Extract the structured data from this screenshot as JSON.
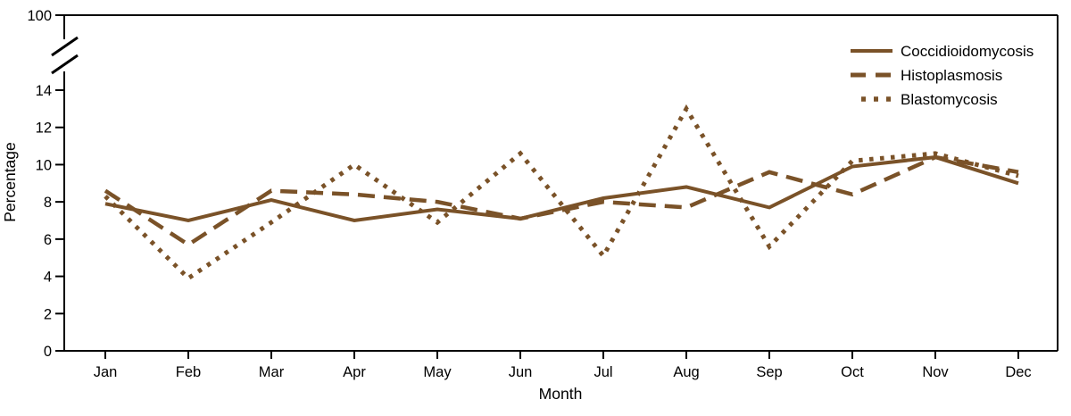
{
  "chart_data": {
    "type": "line",
    "title": "",
    "xlabel": "Month",
    "ylabel": "Percentage",
    "categories": [
      "Jan",
      "Feb",
      "Mar",
      "Apr",
      "May",
      "Jun",
      "Jul",
      "Aug",
      "Sep",
      "Oct",
      "Nov",
      "Dec"
    ],
    "y_axis": {
      "ticks": [
        0,
        2,
        4,
        6,
        8,
        10,
        12,
        14
      ],
      "axis_break": true,
      "break_top_label": "100",
      "display_range": [
        0,
        14
      ]
    },
    "grid": "off",
    "legend_position": "top-right-inside",
    "series": [
      {
        "name": "Coccidioidomycosis",
        "style": "solid",
        "values": [
          7.9,
          7.0,
          8.1,
          7.0,
          7.6,
          7.1,
          8.2,
          8.8,
          7.7,
          9.9,
          10.4,
          9.0
        ]
      },
      {
        "name": "Histoplasmosis",
        "style": "dashed",
        "values": [
          8.6,
          5.7,
          8.6,
          8.4,
          8.0,
          7.1,
          8.0,
          7.7,
          9.6,
          8.4,
          10.4,
          9.6
        ]
      },
      {
        "name": "Blastomycosis",
        "style": "dotted",
        "values": [
          8.3,
          3.9,
          6.9,
          10.0,
          6.9,
          10.6,
          5.1,
          13.0,
          5.6,
          10.2,
          10.6,
          9.4
        ]
      }
    ],
    "colors": {
      "line": "#7a5228",
      "axis": "#000000",
      "text": "#000000"
    }
  }
}
